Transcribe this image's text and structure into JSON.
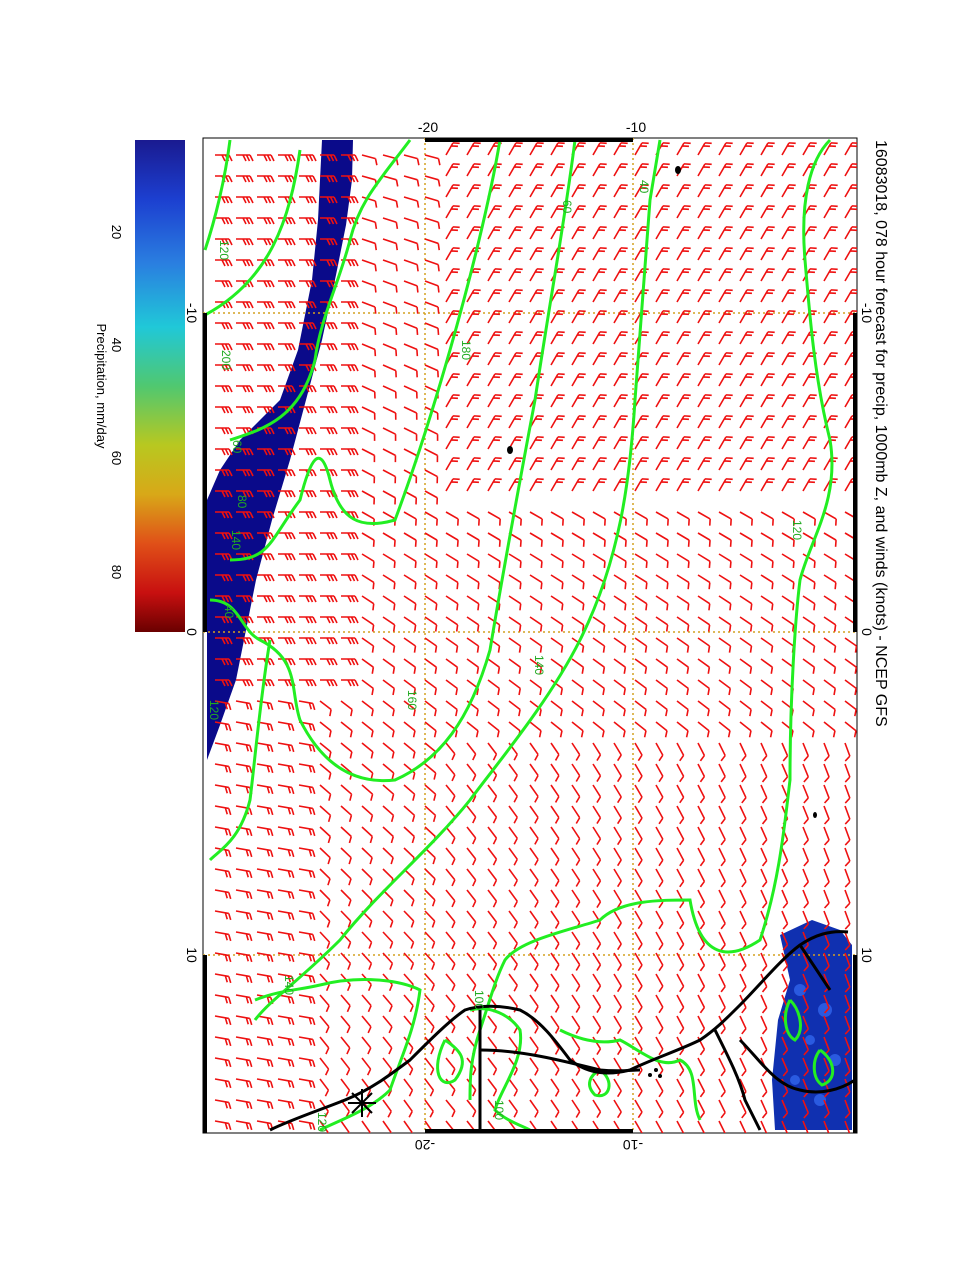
{
  "title": "16083018, 078 hour forecast for precip, 1000mb Z, and winds (knots) - NCEP GFS",
  "colorbar": {
    "label": "Precipitation, mm/day",
    "ticks": [
      "20",
      "40",
      "60",
      "80"
    ]
  },
  "axes": {
    "top": [
      "-20",
      "-10"
    ],
    "bottom": [
      "-20",
      "-10"
    ],
    "left": [
      "-10",
      "0",
      "10"
    ],
    "right": [
      "-10",
      "0",
      "10"
    ]
  },
  "contour_labels": [
    "40",
    "60",
    "120",
    "140",
    "100",
    "180",
    "160",
    "200",
    "120",
    "140",
    "120",
    "100",
    "140",
    "40",
    "60",
    "120",
    "80"
  ],
  "colors": {
    "contour": "#22ee22",
    "barb": "#ee1111",
    "grid": "#d4a020",
    "precip": "#0a0a8a",
    "coast": "#000000"
  }
}
